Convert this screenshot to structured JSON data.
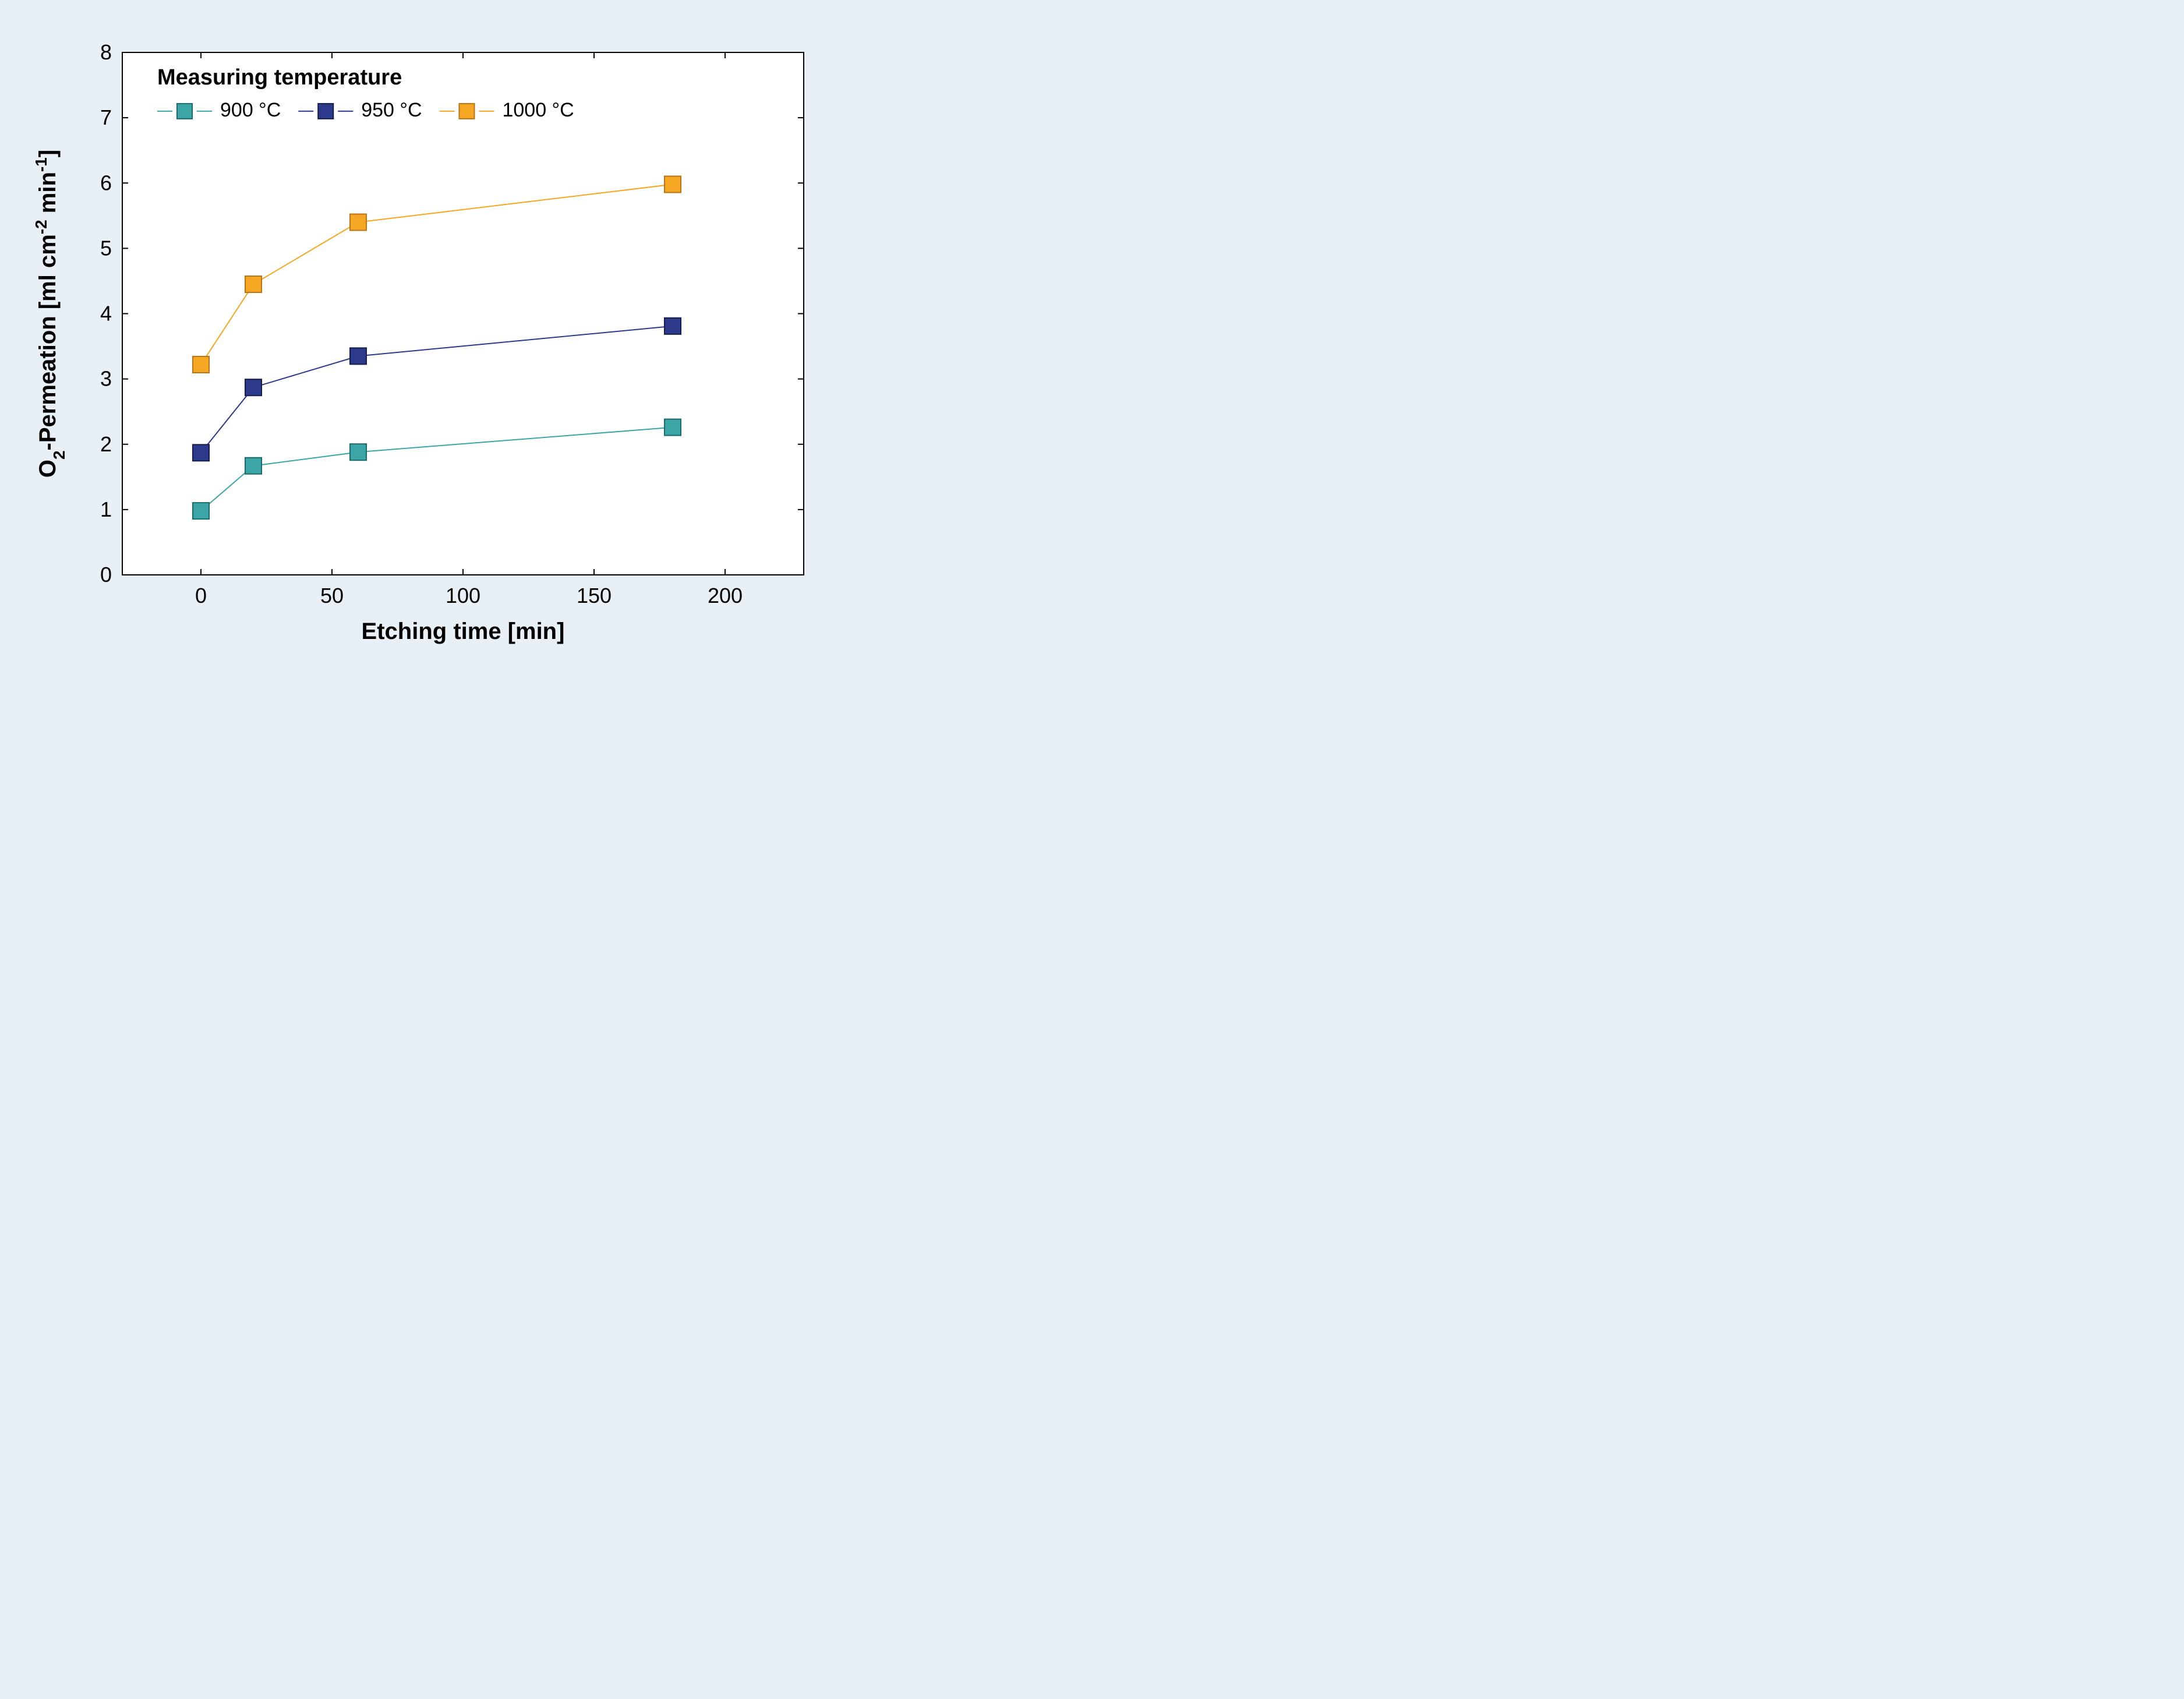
{
  "chart": {
    "type": "line",
    "background_color": "#e8eff5",
    "plot_background_color": "#ffffff",
    "plot_border_color": "#000000",
    "plot_border_width": 2,
    "xlabel": "Etching time [min]",
    "ylabel_plain": "O2-Permeation [ml cm-2 min-1]",
    "label_fontsize": 40,
    "tick_fontsize": 36,
    "xlim": [
      -30,
      230
    ],
    "ylim": [
      0,
      8
    ],
    "xticks": [
      0,
      50,
      100,
      150,
      200
    ],
    "yticks": [
      0,
      1,
      2,
      3,
      4,
      5,
      6,
      7,
      8
    ],
    "tick_length": 10,
    "marker_size": 28,
    "marker_border_width": 2,
    "line_width": 2,
    "legend": {
      "title": "Measuring temperature",
      "title_fontsize": 38,
      "item_fontsize": 34,
      "style": "dashed-between"
    },
    "series": [
      {
        "name": "900 °C",
        "color": "#3ca6a6",
        "marker_border": "#1a6b6b",
        "x": [
          0,
          20,
          60,
          180
        ],
        "y": [
          0.98,
          1.67,
          1.88,
          2.26
        ]
      },
      {
        "name": "950 °C",
        "color": "#2d3a8c",
        "marker_border": "#151d4a",
        "x": [
          0,
          20,
          60,
          180
        ],
        "y": [
          1.87,
          2.87,
          3.35,
          3.81
        ]
      },
      {
        "name": "1000 °C",
        "color": "#f5a623",
        "marker_border": "#b87416",
        "x": [
          0,
          20,
          60,
          180
        ],
        "y": [
          3.22,
          4.45,
          5.4,
          5.98
        ]
      }
    ]
  }
}
